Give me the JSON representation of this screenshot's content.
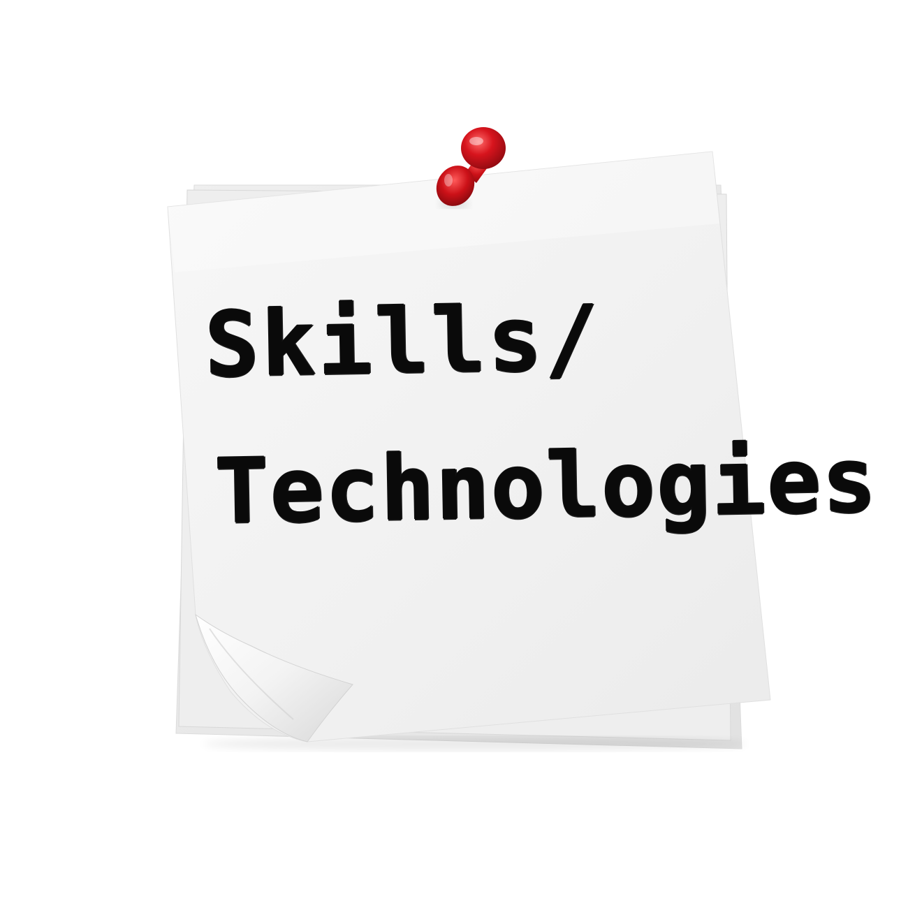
{
  "note": {
    "text_line_1": "Skills/",
    "text_line_2": "Technologies"
  },
  "colors": {
    "background": "#ffffff",
    "paper": "#f4f4f4",
    "paper_back": "#e9e9e9",
    "pin_red": "#d0121b",
    "ink": "#0a0a0a"
  },
  "icons": {
    "pin": "push-pin-icon"
  }
}
